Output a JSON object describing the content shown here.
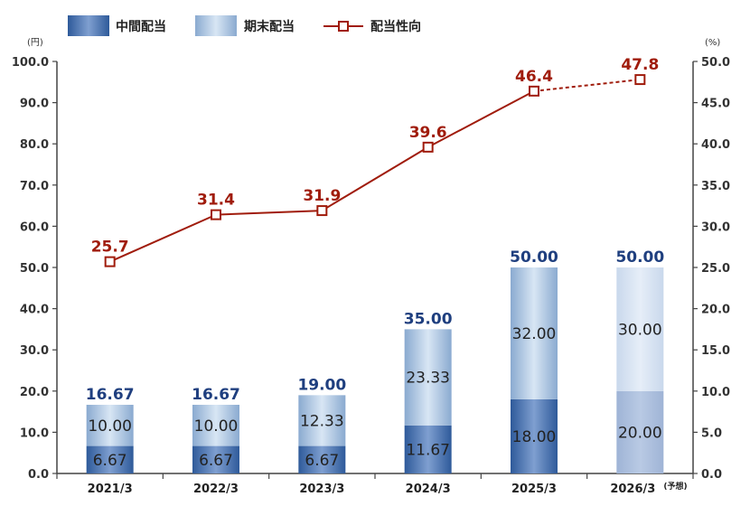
{
  "chart_data": {
    "type": "bar",
    "categories": [
      "2021/3",
      "2022/3",
      "2023/3",
      "2024/3",
      "2025/3",
      "2026/3"
    ],
    "category_note": {
      "index": 5,
      "text": "(予想)"
    },
    "series": [
      {
        "name": "中間配当",
        "kind": "bar-stack",
        "values": [
          6.67,
          6.67,
          6.67,
          11.67,
          18.0,
          20.0
        ]
      },
      {
        "name": "期末配当",
        "kind": "bar-stack",
        "values": [
          10.0,
          10.0,
          12.33,
          23.33,
          32.0,
          30.0
        ]
      },
      {
        "name": "配当性向",
        "kind": "line",
        "axis": "right",
        "values": [
          25.7,
          31.4,
          31.9,
          39.6,
          46.4,
          47.8
        ],
        "dashed_last_segment": true
      }
    ],
    "totals": [
      16.67,
      16.67,
      19.0,
      35.0,
      50.0,
      50.0
    ],
    "forecast_index": 5,
    "left_axis": {
      "unit": "(円)",
      "min": 0,
      "max": 100,
      "step": 10,
      "ticks": [
        "0.0",
        "10.0",
        "20.0",
        "30.0",
        "40.0",
        "50.0",
        "60.0",
        "70.0",
        "80.0",
        "90.0",
        "100.0"
      ]
    },
    "right_axis": {
      "unit": "(%)",
      "min": 0,
      "max": 50,
      "step": 5,
      "ticks": [
        "0.0",
        "5.0",
        "10.0",
        "15.0",
        "20.0",
        "25.0",
        "30.0",
        "35.0",
        "40.0",
        "45.0",
        "50.0"
      ]
    },
    "legend_position": "top-left",
    "grid": false
  },
  "colors": {
    "interim_dark": "#2e5a9a",
    "interim_light": "#7f9fd0",
    "year_end_dark": "#8aaad0",
    "year_end_light": "#d8e6f4",
    "forecast_interim": "#a9bddb",
    "forecast_year_end": "#d5e2f0",
    "line": "#a01c0c",
    "axis": "#444444"
  }
}
